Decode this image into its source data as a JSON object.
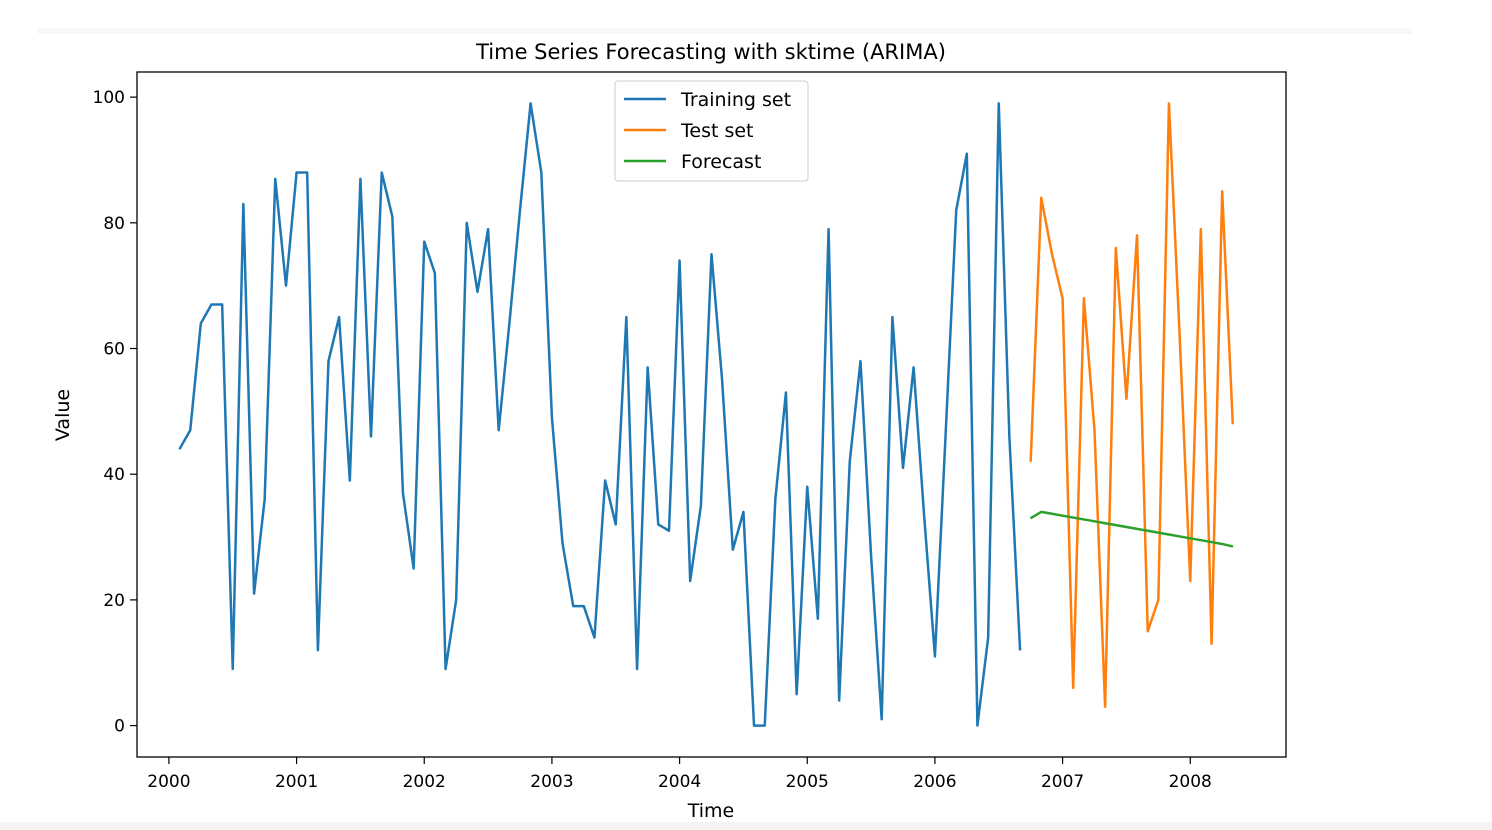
{
  "chart_data": {
    "type": "line",
    "title": "Time Series Forecasting with sktime (ARIMA)",
    "xlabel": "Time",
    "ylabel": "Value",
    "xlim": [
      1999.75,
      2008.75
    ],
    "ylim": [
      -5,
      104
    ],
    "x_ticks": [
      2000,
      2001,
      2002,
      2003,
      2004,
      2005,
      2006,
      2007,
      2008
    ],
    "x_tick_labels": [
      "2000",
      "2001",
      "2002",
      "2003",
      "2004",
      "2005",
      "2006",
      "2007",
      "2008"
    ],
    "y_ticks": [
      0,
      20,
      40,
      60,
      80,
      100
    ],
    "y_tick_labels": [
      "0",
      "20",
      "40",
      "60",
      "80",
      "100"
    ],
    "grid": false,
    "legend_position": "top-center",
    "series": [
      {
        "name": "Training set",
        "color": "#1f77b4",
        "start": "2000-02",
        "x": [
          2000.083,
          2000.167,
          2000.25,
          2000.333,
          2000.417,
          2000.5,
          2000.583,
          2000.667,
          2000.75,
          2000.833,
          2000.917,
          2001.0,
          2001.083,
          2001.167,
          2001.25,
          2001.333,
          2001.417,
          2001.5,
          2001.583,
          2001.667,
          2001.75,
          2001.833,
          2001.917,
          2002.0,
          2002.083,
          2002.167,
          2002.25,
          2002.333,
          2002.417,
          2002.5,
          2002.583,
          2002.667,
          2002.75,
          2002.833,
          2002.917,
          2003.0,
          2003.083,
          2003.167,
          2003.25,
          2003.333,
          2003.417,
          2003.5,
          2003.583,
          2003.667,
          2003.75,
          2003.833,
          2003.917,
          2004.0,
          2004.083,
          2004.167,
          2004.25,
          2004.333,
          2004.417,
          2004.5,
          2004.583,
          2004.667,
          2004.75,
          2004.833,
          2004.917,
          2005.0,
          2005.083,
          2005.167,
          2005.25,
          2005.333,
          2005.417,
          2005.5,
          2005.583,
          2005.667,
          2005.75,
          2005.833,
          2005.917,
          2006.0,
          2006.083,
          2006.167,
          2006.25,
          2006.333,
          2006.417,
          2006.5,
          2006.583,
          2006.667
        ],
        "values": [
          44,
          47,
          64,
          67,
          67,
          9,
          83,
          21,
          36,
          87,
          70,
          88,
          88,
          12,
          58,
          65,
          39,
          87,
          46,
          88,
          81,
          37,
          25,
          77,
          72,
          9,
          20,
          80,
          69,
          79,
          47,
          64,
          82,
          99,
          88,
          49,
          29,
          19,
          19,
          14,
          39,
          32,
          65,
          9,
          57,
          32,
          31,
          74,
          23,
          35,
          75,
          55,
          28,
          34,
          0,
          0,
          36,
          53,
          5,
          38,
          17,
          79,
          4,
          42,
          58,
          27,
          1,
          65,
          41,
          57,
          33,
          11,
          46,
          82,
          91,
          0,
          14,
          99,
          46,
          12
        ]
      },
      {
        "name": "Test set",
        "color": "#ff7f0e",
        "start": "2006-10",
        "x": [
          2006.75,
          2006.833,
          2006.917,
          2007.0,
          2007.083,
          2007.167,
          2007.25,
          2007.333,
          2007.417,
          2007.5,
          2007.583,
          2007.667,
          2007.75,
          2007.833,
          2007.917,
          2008.0,
          2008.083,
          2008.167,
          2008.25,
          2008.333
        ],
        "values": [
          42,
          84,
          75,
          68,
          6,
          68,
          47,
          3,
          76,
          52,
          78,
          15,
          20,
          99,
          62,
          23,
          79,
          13,
          85,
          48
        ]
      },
      {
        "name": "Forecast",
        "color": "#2ca02c",
        "start": "2006-10",
        "x": [
          2006.75,
          2006.833,
          2006.917,
          2007.0,
          2007.083,
          2007.167,
          2007.25,
          2007.333,
          2007.417,
          2007.5,
          2007.583,
          2007.667,
          2007.75,
          2007.833,
          2007.917,
          2008.0,
          2008.083,
          2008.167,
          2008.25,
          2008.333
        ],
        "values": [
          33,
          34,
          33.7,
          33.4,
          33.1,
          32.8,
          32.5,
          32.2,
          31.9,
          31.6,
          31.3,
          31.0,
          30.7,
          30.4,
          30.1,
          29.8,
          29.5,
          29.2,
          28.9,
          28.5
        ]
      }
    ]
  }
}
